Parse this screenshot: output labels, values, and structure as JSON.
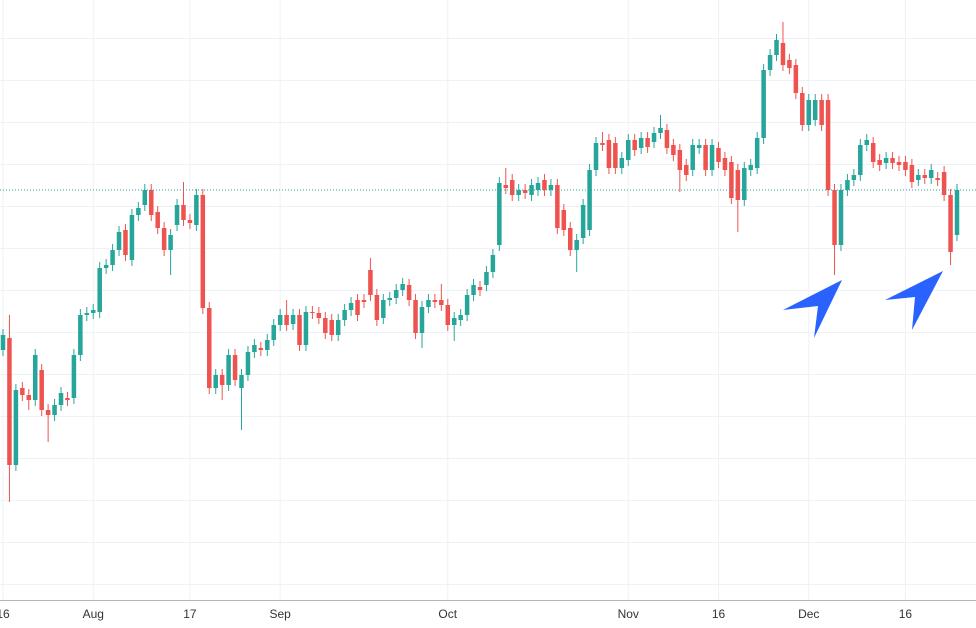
{
  "chart_data": {
    "type": "candlestick",
    "up_color": "#26a69a",
    "down_color": "#ef5350",
    "price_line": true,
    "grid": true,
    "ylim": [
      0,
      600
    ],
    "categories": [
      "16",
      null,
      null,
      null,
      null,
      null,
      null,
      null,
      null,
      null,
      null,
      null,
      null,
      null,
      "Aug",
      null,
      null,
      null,
      null,
      null,
      null,
      null,
      null,
      null,
      null,
      null,
      null,
      null,
      null,
      "17",
      null,
      null,
      null,
      null,
      null,
      null,
      null,
      null,
      null,
      null,
      null,
      null,
      null,
      "Sep",
      null,
      null,
      null,
      null,
      null,
      null,
      null,
      null,
      null,
      null,
      null,
      null,
      null,
      null,
      null,
      null,
      null,
      null,
      null,
      null,
      null,
      null,
      null,
      null,
      null,
      "Oct",
      null,
      null,
      null,
      null,
      null,
      null,
      null,
      null,
      null,
      null,
      null,
      null,
      null,
      null,
      null,
      null,
      null,
      null,
      null,
      null,
      null,
      null,
      null,
      null,
      null,
      null,
      null,
      "Nov",
      null,
      null,
      null,
      null,
      null,
      null,
      null,
      null,
      null,
      null,
      null,
      null,
      null,
      "16",
      null,
      null,
      null,
      null,
      null,
      null,
      null,
      null,
      null,
      null,
      null,
      null,
      null,
      "Dec",
      null,
      null,
      null,
      null,
      null,
      null,
      null,
      null,
      null,
      null,
      null,
      null,
      null,
      null,
      "16",
      null,
      null,
      null,
      null,
      null,
      null,
      null,
      null
    ],
    "candles": [
      [
        250,
        271,
        244,
        265
      ],
      [
        262,
        285,
        98,
        135
      ],
      [
        135,
        216,
        129,
        210
      ],
      [
        212,
        218,
        199,
        205
      ],
      [
        205,
        211,
        190,
        200
      ],
      [
        200,
        251,
        194,
        245
      ],
      [
        230,
        236,
        184,
        190
      ],
      [
        190,
        196,
        158,
        185
      ],
      [
        185,
        201,
        179,
        195
      ],
      [
        195,
        213,
        189,
        207
      ],
      [
        202,
        208,
        194,
        200
      ],
      [
        202,
        251,
        196,
        245
      ],
      [
        245,
        291,
        239,
        285
      ],
      [
        285,
        293,
        279,
        287
      ],
      [
        287,
        296,
        281,
        290
      ],
      [
        288,
        338,
        282,
        332
      ],
      [
        332,
        341,
        326,
        335
      ],
      [
        335,
        356,
        329,
        350
      ],
      [
        350,
        374,
        344,
        368
      ],
      [
        370,
        376,
        339,
        345
      ],
      [
        340,
        391,
        334,
        385
      ],
      [
        385,
        398,
        379,
        392
      ],
      [
        395,
        416,
        389,
        410
      ],
      [
        410,
        416,
        379,
        385
      ],
      [
        388,
        394,
        366,
        372
      ],
      [
        372,
        378,
        344,
        350
      ],
      [
        350,
        371,
        325,
        365
      ],
      [
        375,
        401,
        369,
        395
      ],
      [
        395,
        418,
        374,
        380
      ],
      [
        380,
        386,
        371,
        377
      ],
      [
        375,
        411,
        369,
        405
      ],
      [
        405,
        411,
        286,
        292
      ],
      [
        292,
        298,
        206,
        212
      ],
      [
        212,
        231,
        206,
        225
      ],
      [
        225,
        231,
        200,
        215
      ],
      [
        215,
        251,
        209,
        245
      ],
      [
        245,
        251,
        214,
        220
      ],
      [
        212,
        231,
        170,
        225
      ],
      [
        225,
        254,
        219,
        248
      ],
      [
        248,
        261,
        242,
        255
      ],
      [
        252,
        258,
        244,
        250
      ],
      [
        250,
        266,
        244,
        260
      ],
      [
        260,
        281,
        254,
        275
      ],
      [
        275,
        291,
        269,
        285
      ],
      [
        285,
        300,
        269,
        275
      ],
      [
        276,
        291,
        270,
        285
      ],
      [
        285,
        291,
        249,
        255
      ],
      [
        255,
        294,
        249,
        288
      ],
      [
        288,
        294,
        281,
        287
      ],
      [
        287,
        293,
        276,
        282
      ],
      [
        282,
        288,
        261,
        267
      ],
      [
        280,
        286,
        259,
        265
      ],
      [
        265,
        286,
        259,
        280
      ],
      [
        280,
        296,
        274,
        290
      ],
      [
        290,
        303,
        284,
        297
      ],
      [
        300,
        306,
        279,
        285
      ],
      [
        300,
        306,
        292,
        298
      ],
      [
        330,
        342,
        299,
        305
      ],
      [
        305,
        311,
        274,
        280
      ],
      [
        282,
        306,
        276,
        300
      ],
      [
        300,
        308,
        294,
        302
      ],
      [
        302,
        316,
        296,
        310
      ],
      [
        310,
        322,
        304,
        316
      ],
      [
        315,
        321,
        294,
        300
      ],
      [
        300,
        306,
        261,
        267
      ],
      [
        267,
        299,
        252,
        293
      ],
      [
        293,
        306,
        287,
        300
      ],
      [
        300,
        306,
        292,
        298
      ],
      [
        300,
        316,
        289,
        295
      ],
      [
        295,
        301,
        269,
        275
      ],
      [
        275,
        288,
        259,
        282
      ],
      [
        280,
        291,
        274,
        285
      ],
      [
        285,
        311,
        279,
        305
      ],
      [
        305,
        321,
        299,
        315
      ],
      [
        313,
        319,
        304,
        310
      ],
      [
        315,
        334,
        309,
        328
      ],
      [
        328,
        351,
        322,
        345
      ],
      [
        355,
        423,
        349,
        417
      ],
      [
        415,
        432,
        406,
        412
      ],
      [
        420,
        426,
        399,
        405
      ],
      [
        405,
        416,
        399,
        410
      ],
      [
        410,
        416,
        401,
        407
      ],
      [
        405,
        421,
        399,
        415
      ],
      [
        410,
        423,
        404,
        417
      ],
      [
        420,
        426,
        404,
        410
      ],
      [
        410,
        421,
        404,
        415
      ],
      [
        415,
        421,
        366,
        372
      ],
      [
        390,
        396,
        364,
        370
      ],
      [
        372,
        378,
        344,
        350
      ],
      [
        350,
        366,
        328,
        360
      ],
      [
        362,
        401,
        356,
        395
      ],
      [
        370,
        436,
        364,
        430
      ],
      [
        430,
        463,
        424,
        457
      ],
      [
        457,
        468,
        449,
        455
      ],
      [
        460,
        466,
        426,
        432
      ],
      [
        457,
        463,
        426,
        432
      ],
      [
        432,
        448,
        426,
        442
      ],
      [
        440,
        466,
        434,
        460
      ],
      [
        460,
        466,
        444,
        450
      ],
      [
        452,
        468,
        446,
        462
      ],
      [
        462,
        468,
        447,
        453
      ],
      [
        458,
        473,
        452,
        467
      ],
      [
        467,
        485,
        461,
        472
      ],
      [
        470,
        476,
        446,
        452
      ],
      [
        455,
        461,
        439,
        445
      ],
      [
        450,
        456,
        408,
        430
      ],
      [
        435,
        441,
        419,
        425
      ],
      [
        430,
        461,
        424,
        455
      ],
      [
        452,
        461,
        446,
        455
      ],
      [
        455,
        461,
        424,
        430
      ],
      [
        430,
        461,
        424,
        455
      ],
      [
        452,
        458,
        432,
        438
      ],
      [
        442,
        448,
        424,
        430
      ],
      [
        438,
        444,
        396,
        402
      ],
      [
        430,
        436,
        368,
        400
      ],
      [
        400,
        438,
        394,
        432
      ],
      [
        430,
        441,
        424,
        435
      ],
      [
        432,
        468,
        426,
        462
      ],
      [
        462,
        536,
        456,
        530
      ],
      [
        530,
        551,
        524,
        545
      ],
      [
        545,
        566,
        539,
        560
      ],
      [
        557,
        578,
        529,
        535
      ],
      [
        540,
        546,
        526,
        532
      ],
      [
        535,
        541,
        501,
        507
      ],
      [
        507,
        513,
        469,
        475
      ],
      [
        475,
        506,
        469,
        500
      ],
      [
        480,
        506,
        474,
        500
      ],
      [
        500,
        506,
        469,
        475
      ],
      [
        500,
        506,
        404,
        410
      ],
      [
        410,
        416,
        325,
        355
      ],
      [
        355,
        416,
        349,
        410
      ],
      [
        410,
        426,
        404,
        420
      ],
      [
        420,
        431,
        414,
        425
      ],
      [
        425,
        461,
        419,
        455
      ],
      [
        455,
        466,
        449,
        460
      ],
      [
        457,
        463,
        432,
        438
      ],
      [
        440,
        446,
        429,
        435
      ],
      [
        437,
        448,
        431,
        442
      ],
      [
        442,
        448,
        431,
        437
      ],
      [
        438,
        444,
        429,
        435
      ],
      [
        438,
        444,
        424,
        430
      ],
      [
        435,
        441,
        412,
        418
      ],
      [
        420,
        431,
        414,
        425
      ],
      [
        425,
        431,
        416,
        422
      ],
      [
        422,
        436,
        416,
        430
      ],
      [
        422,
        428,
        414,
        420
      ],
      [
        428,
        434,
        399,
        405
      ],
      [
        405,
        411,
        335,
        348
      ],
      [
        365,
        416,
        359,
        410
      ]
    ]
  }
}
